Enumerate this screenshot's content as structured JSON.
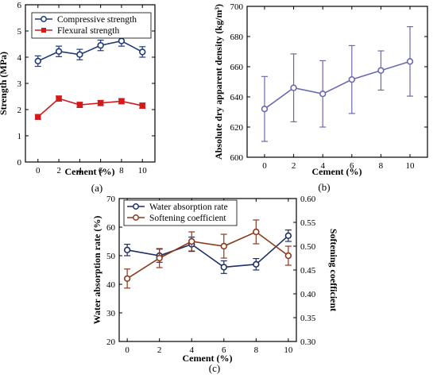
{
  "panel_labels": [
    "(a)",
    "(b)",
    "(c)"
  ],
  "chart_data": [
    {
      "type": "line",
      "panel": "(a)",
      "xlabel": "Cement (%)",
      "ylabel": "Strength (MPa)",
      "x": [
        0,
        2,
        4,
        6,
        8,
        10
      ],
      "xticks": [
        "0",
        "2",
        "4",
        "6",
        "8",
        "10"
      ],
      "ylim": [
        0,
        6
      ],
      "yticks": [
        "0",
        "1",
        "2",
        "3",
        "4",
        "5",
        "6"
      ],
      "legend_position": "top-left",
      "series": [
        {
          "name": "Compressive strength",
          "color": "#1f3a78",
          "marker": "circle-open",
          "values": [
            3.85,
            4.22,
            4.1,
            4.45,
            4.62,
            4.2
          ],
          "errors": [
            0.2,
            0.2,
            0.2,
            0.2,
            0.2,
            0.2
          ]
        },
        {
          "name": "Flexural strength",
          "color": "#d21a1a",
          "marker": "square",
          "values": [
            1.72,
            2.42,
            2.18,
            2.25,
            2.32,
            2.15
          ],
          "errors": [
            0.09,
            0.1,
            0.1,
            0.1,
            0.1,
            0.1
          ]
        }
      ]
    },
    {
      "type": "line",
      "panel": "(b)",
      "xlabel": "Cement (%)",
      "ylabel": "Absolute dry apparent density (kg/m³)",
      "x": [
        0,
        2,
        4,
        6,
        8,
        10
      ],
      "xticks": [
        "0",
        "2",
        "4",
        "6",
        "8",
        "10"
      ],
      "ylim": [
        600,
        700
      ],
      "yticks": [
        "600",
        "620",
        "640",
        "660",
        "680",
        "700"
      ],
      "series": [
        {
          "color": "#6a6ab0",
          "marker": "circle-open",
          "values": [
            632,
            646,
            642,
            651.5,
            657.5,
            663.5
          ],
          "errors": [
            21.5,
            22.5,
            22,
            22.5,
            13,
            23
          ]
        }
      ]
    },
    {
      "type": "line",
      "panel": "(c)",
      "xlabel": "Cement (%)",
      "ylabel": "Water absorption rate (%)",
      "y2label": "Softening coefficient",
      "x": [
        0,
        2,
        4,
        6,
        8,
        10
      ],
      "xticks": [
        "0",
        "2",
        "4",
        "6",
        "8",
        "10"
      ],
      "ylim": [
        20,
        70
      ],
      "yticks": [
        "20",
        "30",
        "40",
        "50",
        "60",
        "70"
      ],
      "y2lim": [
        0.3,
        0.6
      ],
      "y2ticks": [
        "0.30",
        "0.35",
        "0.40",
        "0.45",
        "0.50",
        "0.55",
        "0.60"
      ],
      "legend_position": "top-left",
      "series": [
        {
          "name": "Water absorption rate",
          "axis": "left",
          "color": "#1f2f66",
          "marker": "circle-open",
          "values": [
            52,
            50,
            54,
            46,
            47,
            57
          ],
          "errors": [
            2,
            2.3,
            2.5,
            2.2,
            2,
            2
          ]
        },
        {
          "name": "Softening coefficient",
          "axis": "right",
          "color": "#8b3a1e",
          "marker": "circle-open",
          "values": [
            0.432,
            0.475,
            0.51,
            0.5,
            0.53,
            0.48
          ],
          "errors": [
            0.02,
            0.02,
            0.02,
            0.025,
            0.025,
            0.02
          ]
        }
      ]
    }
  ]
}
